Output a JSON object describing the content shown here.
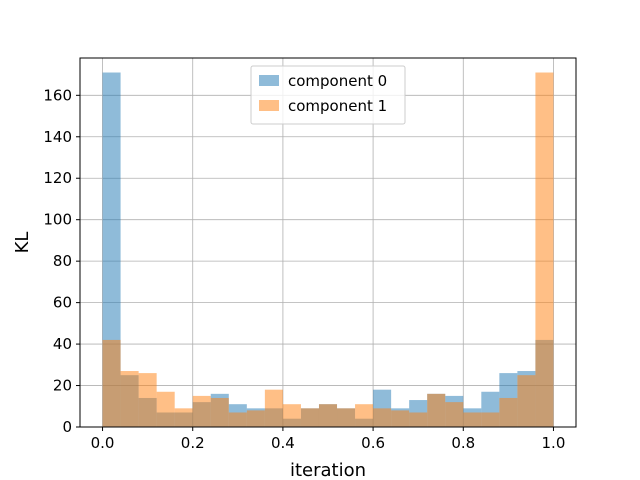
{
  "chart_data": {
    "type": "bar",
    "title": "",
    "xlabel": "iteration",
    "ylabel": "KL",
    "xlim": [
      -0.05,
      1.05
    ],
    "ylim": [
      0,
      178
    ],
    "xticks": [
      0.0,
      0.2,
      0.4,
      0.6,
      0.8,
      1.0
    ],
    "xtick_labels": [
      "0.0",
      "0.2",
      "0.4",
      "0.6",
      "0.8",
      "1.0"
    ],
    "yticks": [
      0,
      20,
      40,
      60,
      80,
      100,
      120,
      140,
      160
    ],
    "ytick_labels": [
      "0",
      "20",
      "40",
      "60",
      "80",
      "100",
      "120",
      "140",
      "160"
    ],
    "grid": true,
    "legend_position": "top-center",
    "bin_edges": [
      0.0,
      0.04,
      0.08,
      0.12,
      0.16,
      0.2,
      0.24,
      0.28,
      0.32,
      0.36,
      0.4,
      0.44,
      0.48,
      0.52,
      0.56,
      0.6,
      0.64,
      0.68,
      0.72,
      0.76,
      0.8,
      0.84,
      0.88,
      0.92,
      0.96,
      1.0
    ],
    "series": [
      {
        "name": "component 0",
        "color": "#1f77b4",
        "values": [
          171,
          25,
          14,
          7,
          7,
          12,
          16,
          11,
          9,
          9,
          4,
          9,
          11,
          9,
          4,
          18,
          9,
          13,
          16,
          15,
          9,
          17,
          26,
          27,
          42
        ]
      },
      {
        "name": "component 1",
        "color": "#ff7f0e",
        "values": [
          42,
          27,
          26,
          17,
          9,
          15,
          14,
          7,
          8,
          18,
          11,
          9,
          11,
          9,
          11,
          9,
          8,
          7,
          16,
          12,
          7,
          7,
          14,
          25,
          171
        ]
      }
    ]
  }
}
